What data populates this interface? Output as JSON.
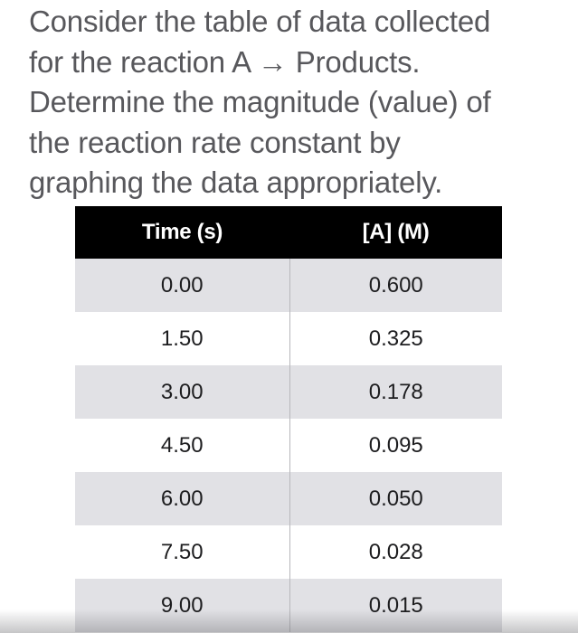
{
  "question": {
    "lines": [
      "Consider the table of data collected",
      "for the reaction A → Products.",
      "Determine the magnitude (value) of",
      "the reaction rate constant by",
      "graphing the data appropriately."
    ]
  },
  "table": {
    "headers": [
      "Time (s)",
      "[A] (M)"
    ],
    "rows": [
      [
        "0.00",
        "0.600"
      ],
      [
        "1.50",
        "0.325"
      ],
      [
        "3.00",
        "0.178"
      ],
      [
        "4.50",
        "0.095"
      ],
      [
        "6.00",
        "0.050"
      ],
      [
        "7.50",
        "0.028"
      ],
      [
        "9.00",
        "0.015"
      ]
    ]
  }
}
